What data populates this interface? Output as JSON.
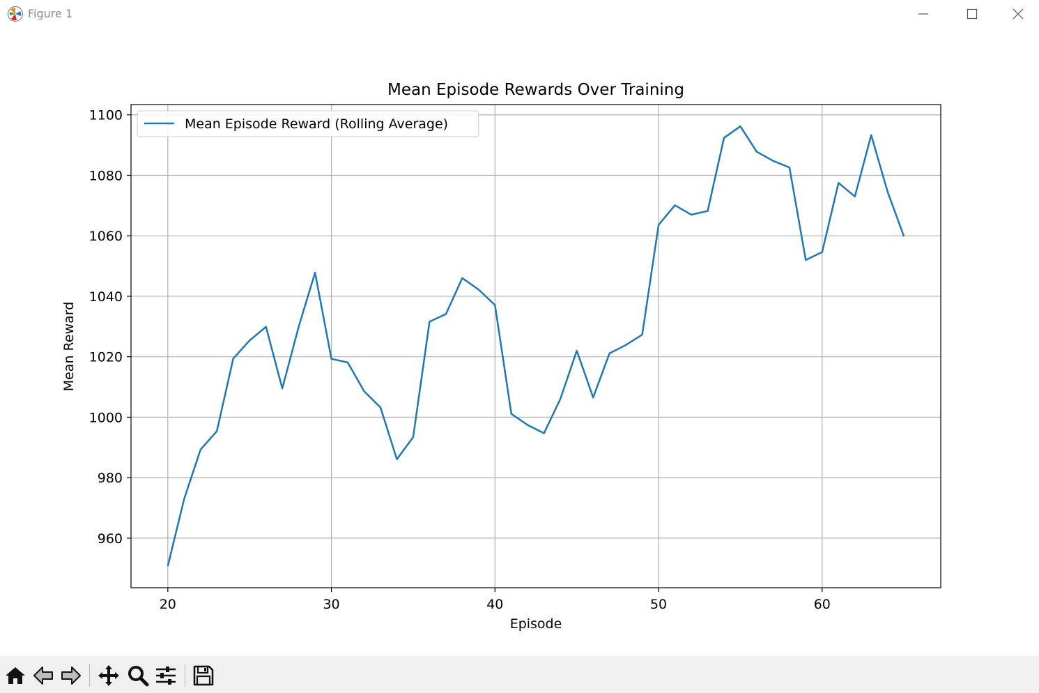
{
  "window": {
    "title": "Figure 1",
    "icons": {
      "app": "matplotlib-logo-icon",
      "minimize": "minimize-icon",
      "maximize": "maximize-icon",
      "close": "close-icon"
    }
  },
  "toolbar": {
    "tools": [
      {
        "name": "home-icon"
      },
      {
        "name": "back-arrow-icon"
      },
      {
        "name": "forward-arrow-icon"
      },
      {
        "name": "pan-move-icon"
      },
      {
        "name": "zoom-magnifier-icon"
      },
      {
        "name": "configure-subplots-icon"
      },
      {
        "name": "save-floppy-icon"
      }
    ]
  },
  "colors": {
    "series": "#1f77b4",
    "grid": "#b0b0b0",
    "axes": "#000000"
  },
  "chart_data": {
    "type": "line",
    "title": "Mean Episode Rewards Over Training",
    "xlabel": "Episode",
    "ylabel": "Mean Reward",
    "xlim": [
      17.75,
      67.25
    ],
    "ylim": [
      943.6,
      1103.4
    ],
    "xticks": [
      20,
      30,
      40,
      50,
      60
    ],
    "yticks": [
      960,
      980,
      1000,
      1020,
      1040,
      1060,
      1080,
      1100
    ],
    "grid": true,
    "legend": {
      "placement": "top-left",
      "entries": [
        "Mean Episode Reward (Rolling Average)"
      ]
    },
    "series": [
      {
        "name": "Mean Episode Reward (Rolling Average)",
        "x": [
          20,
          21,
          22,
          23,
          24,
          25,
          26,
          27,
          28,
          29,
          30,
          31,
          32,
          33,
          34,
          35,
          36,
          37,
          38,
          39,
          40,
          41,
          42,
          43,
          44,
          45,
          46,
          47,
          48,
          49,
          50,
          51,
          52,
          53,
          54,
          55,
          56,
          57,
          58,
          59,
          60,
          61,
          62,
          63,
          64,
          65
        ],
        "y": [
          950.8,
          973.0,
          989.3,
          995.4,
          1019.4,
          1025.4,
          1029.9,
          1009.5,
          1029.9,
          1047.8,
          1019.3,
          1018.1,
          1008.6,
          1003.2,
          986.1,
          993.4,
          1031.6,
          1034.1,
          1046.0,
          1042.2,
          1037.1,
          1001.1,
          997.4,
          994.7,
          1006.1,
          1022.0,
          1006.5,
          1021.1,
          1023.9,
          1027.3,
          1063.6,
          1070.1,
          1067.0,
          1068.2,
          1092.4,
          1096.2,
          1087.8,
          1084.8,
          1082.6,
          1052.0,
          1054.6,
          1077.5,
          1073.0,
          1093.3,
          1074.6,
          1059.8
        ]
      }
    ]
  }
}
